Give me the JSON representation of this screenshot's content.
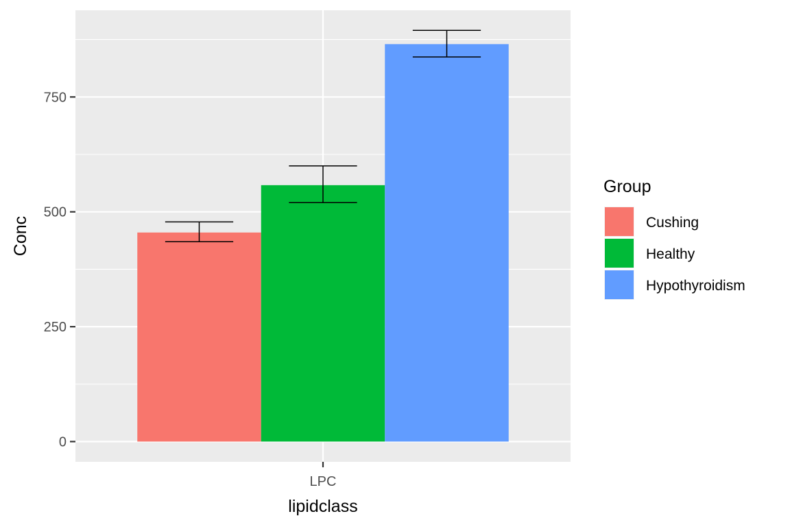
{
  "chart_data": {
    "type": "bar",
    "xlabel": "lipidclass",
    "ylabel": "Conc",
    "categories": [
      "LPC"
    ],
    "y_ticks": [
      0,
      250,
      500,
      750
    ],
    "ylim": [
      -45,
      940
    ],
    "grid": true,
    "legend_title": "Group",
    "legend_position": "right",
    "series": [
      {
        "name": "Cushing",
        "color": "#F8766D",
        "values": [
          455
        ],
        "error_low": [
          435
        ],
        "error_high": [
          478
        ]
      },
      {
        "name": "Healthy",
        "color": "#00BA38",
        "values": [
          558
        ],
        "error_low": [
          520
        ],
        "error_high": [
          600
        ]
      },
      {
        "name": "Hypothyroidism",
        "color": "#619CFF",
        "values": [
          865
        ],
        "error_low": [
          837
        ],
        "error_high": [
          895
        ]
      }
    ]
  }
}
